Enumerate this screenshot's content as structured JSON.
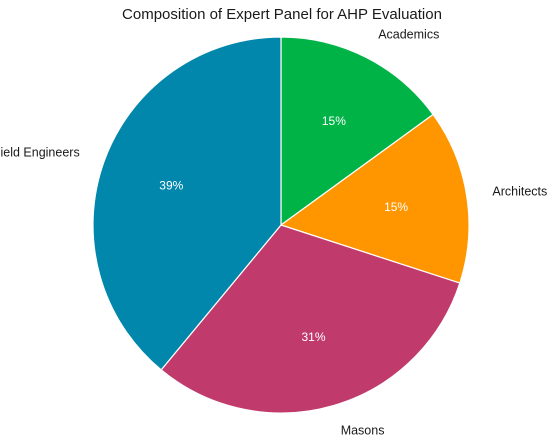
{
  "chart_data": {
    "type": "pie",
    "title": "Composition of Expert Panel for AHP Evaluation",
    "slices": [
      {
        "label": "Academics",
        "value": 15,
        "value_label": "15%",
        "color": "#00b347"
      },
      {
        "label": "Architects",
        "value": 15,
        "value_label": "15%",
        "color": "#ff9600"
      },
      {
        "label": "Masons",
        "value": 31,
        "value_label": "31%",
        "color": "#c03b6c"
      },
      {
        "label": "Field Engineers",
        "value": 39,
        "value_label": "39%",
        "color": "#0087ab"
      }
    ],
    "start_angle": "12 o'clock",
    "direction": "clockwise"
  }
}
